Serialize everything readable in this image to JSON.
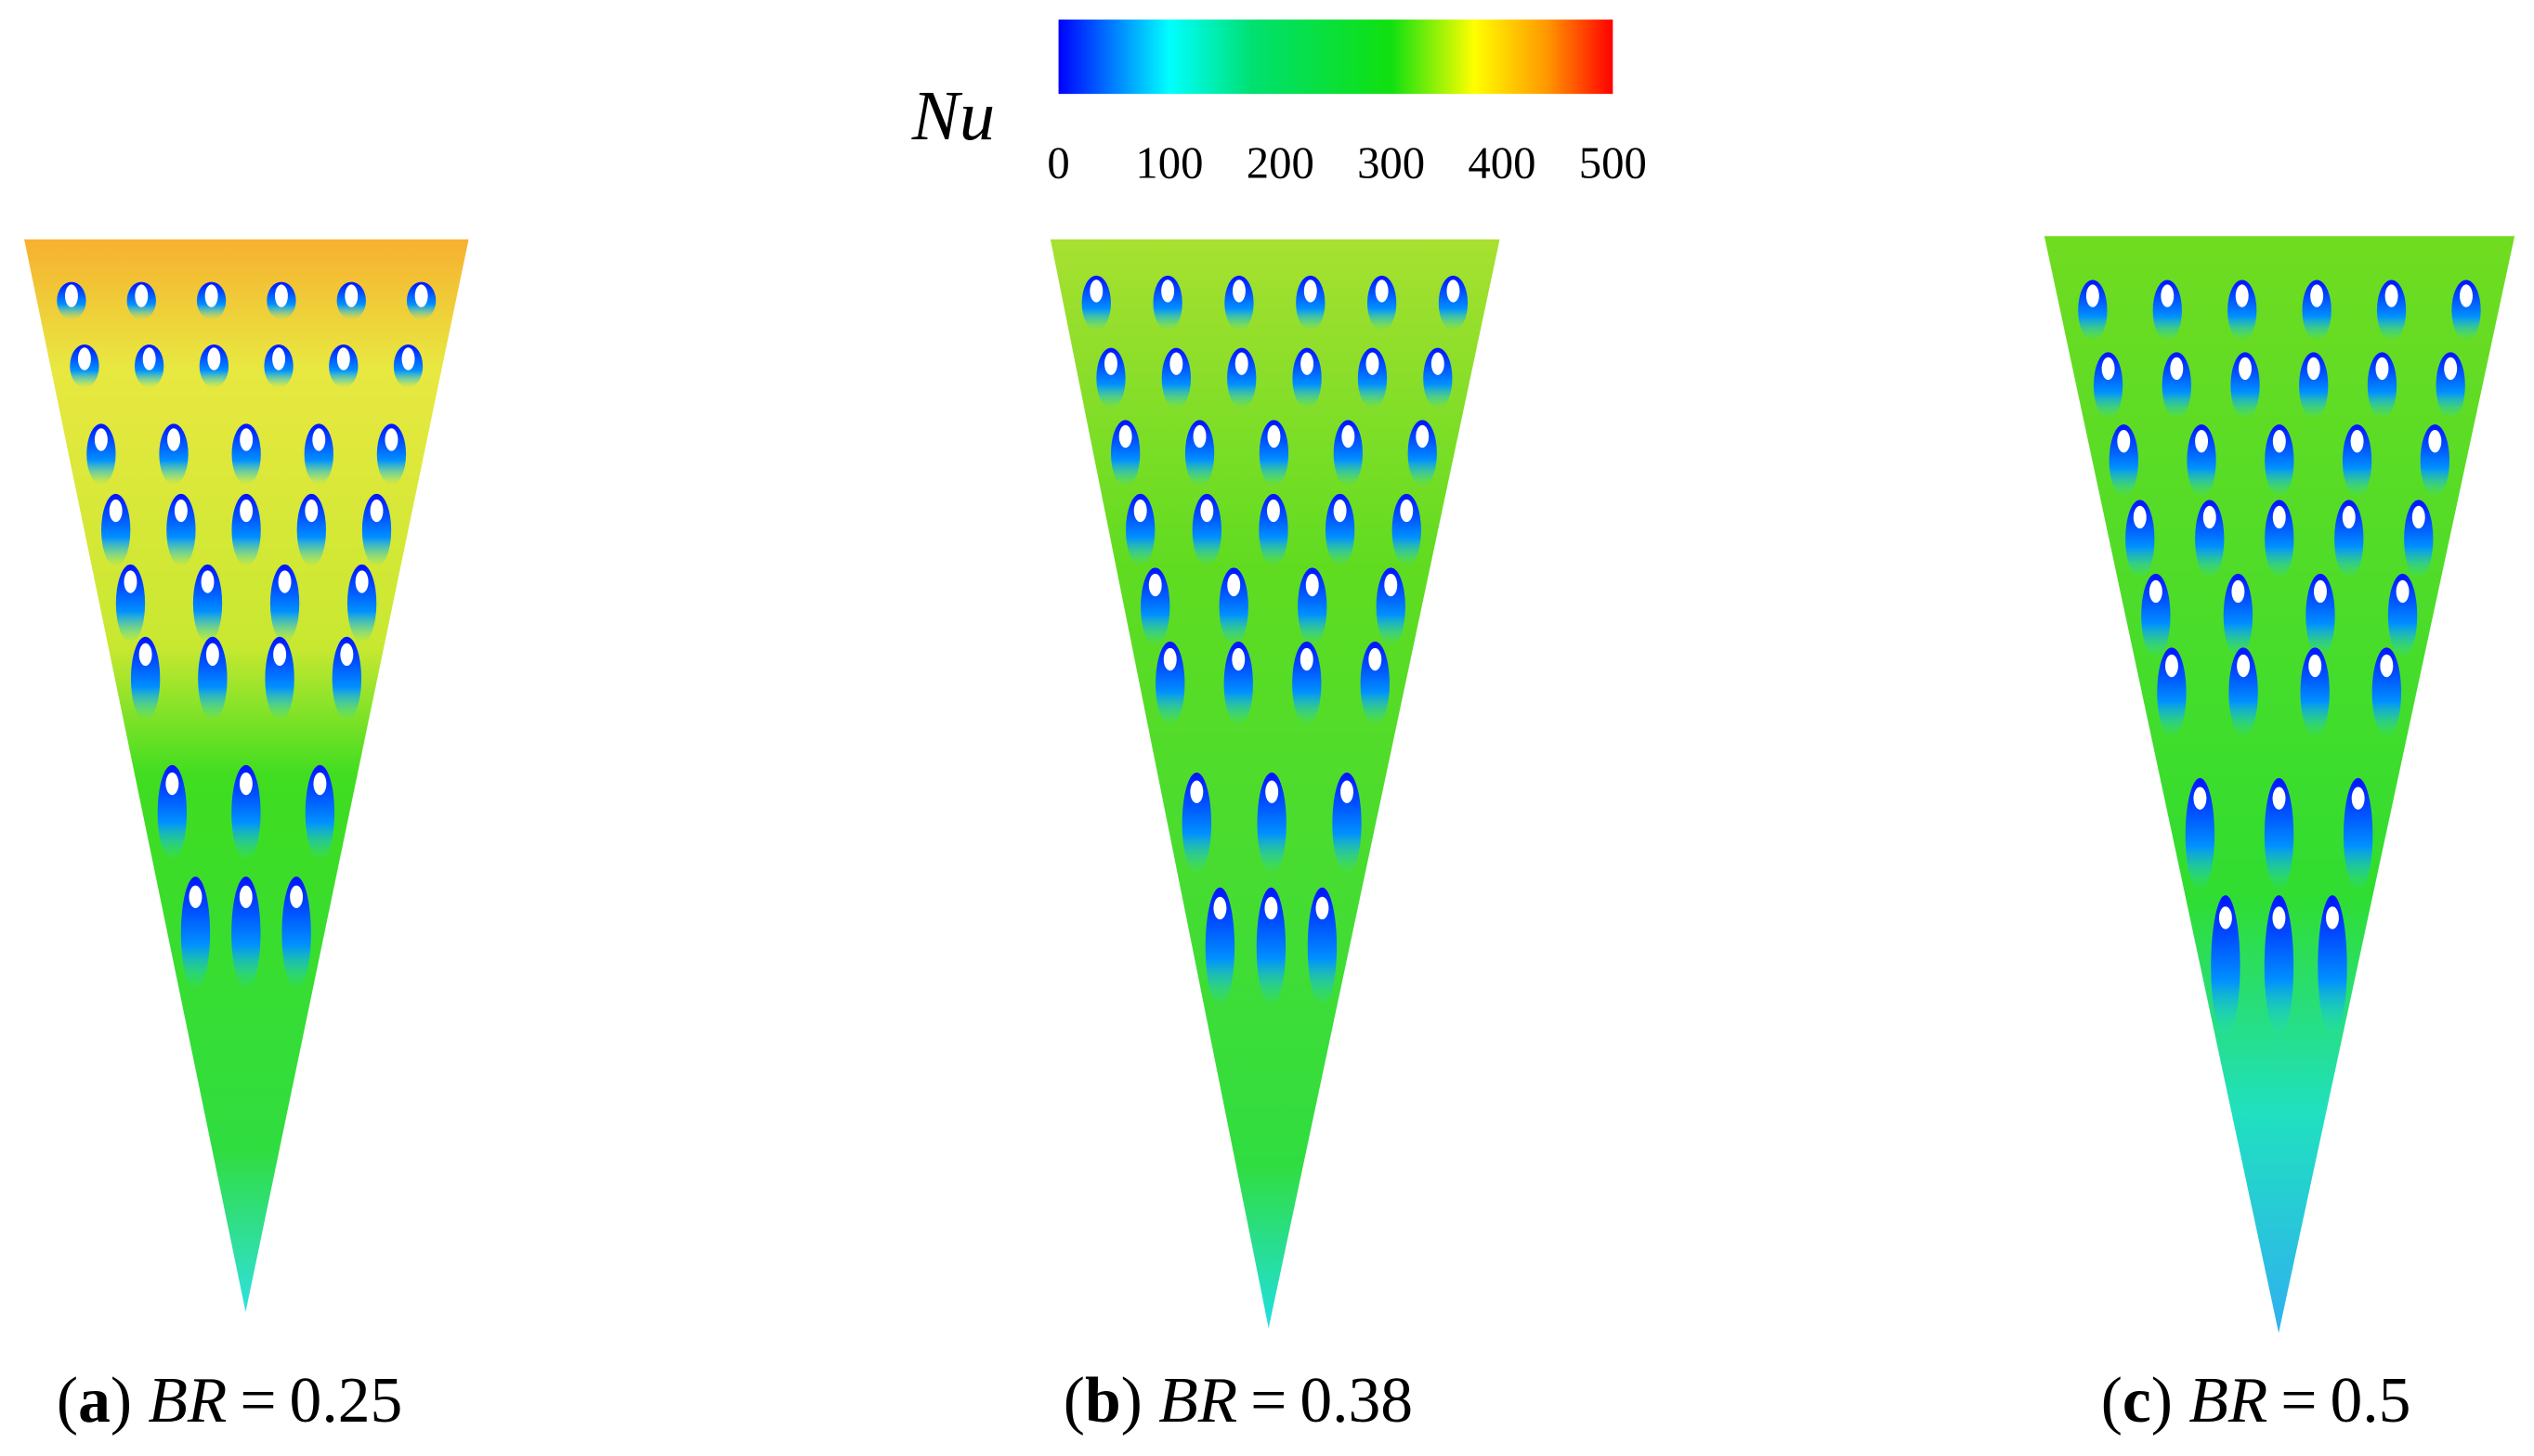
{
  "colorbar": {
    "label": "Nu",
    "range": [
      0,
      500
    ],
    "ticks": [
      0,
      100,
      200,
      300,
      400,
      500
    ]
  },
  "panels": [
    {
      "open": "(",
      "letter": "a",
      "close": ")",
      "param": "BR",
      "equals": "=",
      "value": 0.25
    },
    {
      "open": "(",
      "letter": "b",
      "close": ")",
      "param": "BR",
      "equals": "=",
      "value": 0.38
    },
    {
      "open": "(",
      "letter": "c",
      "close": ")",
      "param": "BR",
      "equals": "=",
      "value": 0.5
    }
  ]
}
